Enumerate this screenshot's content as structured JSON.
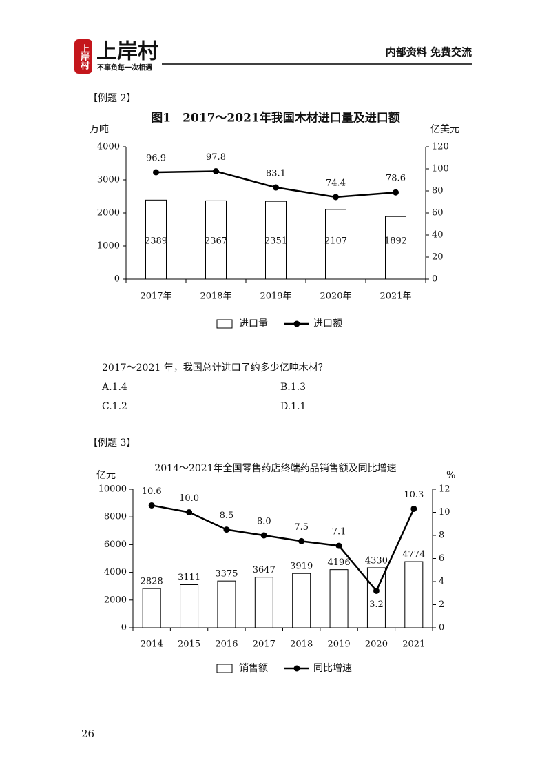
{
  "header": {
    "brand": "上岸村",
    "slogan": "不辜负每一次相遇",
    "note": "内部资料 免费交流"
  },
  "example_2": "【例题 2】",
  "question": {
    "text": "2017～2021 年，我国总计进口了约多少亿吨木材？",
    "options": [
      "A.1.4",
      "B.1.3",
      "C.1.2",
      "D.1.1"
    ]
  },
  "example_3": "【例题 3】",
  "page_number": "26",
  "chart_data": [
    {
      "type": "bar-line",
      "title": "图1　2017～2021年我国木材进口量及进口额",
      "y_label": "万吨",
      "y2_label": "亿美元",
      "categories": [
        "2017年",
        "2018年",
        "2019年",
        "2020年",
        "2021年"
      ],
      "series": [
        {
          "name": "进口量",
          "type": "bar",
          "color": "#ffffff",
          "values": [
            2389,
            2367,
            2351,
            2107,
            1892
          ]
        },
        {
          "name": "进口额",
          "type": "line",
          "axis": "y2",
          "color": "#000000",
          "values": [
            96.9,
            97.8,
            83.1,
            74.4,
            78.6
          ]
        }
      ],
      "ylim": [
        0,
        4000
      ],
      "yticks": [
        0,
        1000,
        2000,
        3000,
        4000
      ],
      "y2lim": [
        0,
        120
      ],
      "y2ticks": [
        0,
        20,
        40,
        60,
        80,
        100,
        120
      ]
    },
    {
      "type": "bar-line",
      "title": "2014～2021年全国零售药店终端药品销售额及同比增速",
      "y_label": "亿元",
      "y2_label": "%",
      "categories": [
        "2014",
        "2015",
        "2016",
        "2017",
        "2018",
        "2019",
        "2020",
        "2021"
      ],
      "series": [
        {
          "name": "销售额",
          "type": "bar",
          "color": "#ffffff",
          "values": [
            2828,
            3111,
            3375,
            3647,
            3919,
            4196,
            4330,
            4774
          ]
        },
        {
          "name": "同比增速",
          "type": "line",
          "axis": "y2",
          "color": "#000000",
          "values": [
            10.6,
            10.0,
            8.5,
            8.0,
            7.5,
            7.1,
            3.2,
            10.3
          ],
          "value_labels": [
            "10.6",
            "10.0",
            "8.5",
            "8.0",
            "7.5",
            "7.1",
            "3.2",
            "10.3"
          ]
        }
      ],
      "ylim": [
        0,
        10000
      ],
      "yticks": [
        0,
        2000,
        4000,
        6000,
        8000,
        10000
      ],
      "y2lim": [
        0,
        12
      ],
      "y2ticks": [
        0,
        2,
        4,
        6,
        8,
        10,
        12
      ]
    }
  ]
}
